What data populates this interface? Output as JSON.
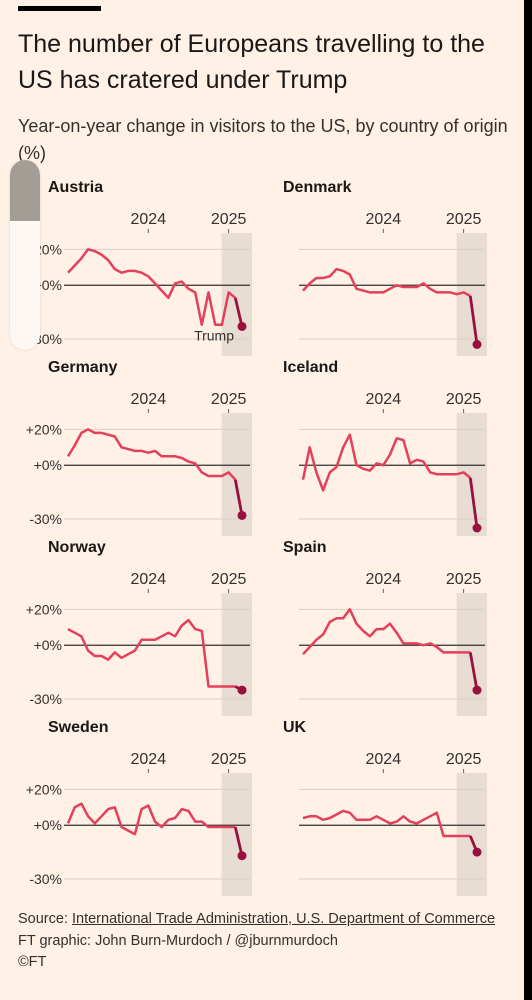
{
  "title": "The number of Europeans travelling to the US has cratered under Trump",
  "subtitle": "Year-on-year change in visitors to the US, by country of origin (%)",
  "source": {
    "prefix": "Source: ",
    "link": "International Trade Administration, U.S. Department of Commerce",
    "graphic": "FT graphic: John Burn-Murdoch / @jburnmurdoch",
    "copyright": "©FT"
  },
  "colors": {
    "line": "#e3405b",
    "last_segment": "#990f3d",
    "shade": "#e7ddd2",
    "zero": "#33302e",
    "grid": "#d9d0c8"
  },
  "scrollbar": {
    "level": 0.32
  },
  "chart_data": {
    "type": "line",
    "x_ticks": [
      "2024",
      "2025"
    ],
    "y_ticks": [
      "+20%",
      "+0%",
      "-30%"
    ],
    "annotation": "Trump",
    "ylim": [
      -35,
      28
    ],
    "shaded_period": "2025-01 to 2025-03",
    "panels": [
      {
        "name": "Austria",
        "x": [
          "2023-01",
          "2023-02",
          "2023-03",
          "2023-04",
          "2023-05",
          "2023-06",
          "2023-07",
          "2023-08",
          "2023-09",
          "2023-10",
          "2023-11",
          "2023-12",
          "2024-01",
          "2024-02",
          "2024-03",
          "2024-04",
          "2024-05",
          "2024-06",
          "2024-07",
          "2024-08",
          "2024-09",
          "2024-10",
          "2024-11",
          "2024-12",
          "2025-01",
          "2025-02",
          "2025-03"
        ],
        "values": [
          7,
          11,
          15,
          20,
          19,
          17,
          14,
          9,
          7,
          8,
          8,
          7,
          5,
          1,
          -3,
          -7,
          1,
          2,
          -2,
          -4,
          -22,
          -4,
          -22,
          -22,
          -4,
          -7,
          -23
        ]
      },
      {
        "name": "Denmark",
        "values": [
          -3,
          1,
          4,
          4,
          5,
          9,
          8,
          6,
          -2,
          -3,
          -4,
          -4,
          -4,
          -2,
          0,
          -1,
          -1,
          -1,
          1,
          -2,
          -4,
          -4,
          -4,
          -5,
          -4,
          -6,
          -33
        ]
      },
      {
        "name": "Germany",
        "values": [
          5,
          11,
          18,
          20,
          18,
          18,
          17,
          16,
          10,
          9,
          8,
          8,
          7,
          8,
          5,
          5,
          5,
          4,
          2,
          1,
          -4,
          -6,
          -6,
          -6,
          -4,
          -8,
          -28
        ]
      },
      {
        "name": "Iceland",
        "values": [
          -8,
          10,
          -4,
          -14,
          -4,
          -1,
          10,
          17,
          0,
          -2,
          -3,
          1,
          0,
          6,
          15,
          14,
          1,
          3,
          2,
          -4,
          -5,
          -5,
          -5,
          -5,
          -4,
          -7,
          -35
        ]
      },
      {
        "name": "Norway",
        "values": [
          9,
          7,
          5,
          -3,
          -6,
          -6,
          -8,
          -4,
          -7,
          -5,
          -3,
          3,
          3,
          3,
          5,
          7,
          5,
          11,
          14,
          9,
          8,
          -23,
          -23,
          -23,
          -23,
          -23,
          -25
        ]
      },
      {
        "name": "Spain",
        "values": [
          -5,
          -1,
          3,
          6,
          13,
          15,
          15,
          20,
          12,
          8,
          5,
          9,
          9,
          12,
          7,
          1,
          1,
          1,
          0,
          1,
          -1,
          -4,
          -4,
          -4,
          -4,
          -4,
          -25
        ]
      },
      {
        "name": "Sweden",
        "values": [
          1,
          10,
          12,
          5,
          1,
          5,
          9,
          10,
          -1,
          -3,
          -5,
          9,
          11,
          2,
          -1,
          3,
          4,
          9,
          8,
          2,
          2,
          -1,
          -1,
          -1,
          -1,
          -1,
          -17
        ]
      },
      {
        "name": "UK",
        "values": [
          4,
          5,
          5,
          3,
          4,
          6,
          8,
          7,
          3,
          3,
          3,
          5,
          3,
          1,
          2,
          5,
          2,
          1,
          3,
          5,
          7,
          -6,
          -6,
          -6,
          -6,
          -6,
          -15
        ]
      }
    ]
  }
}
